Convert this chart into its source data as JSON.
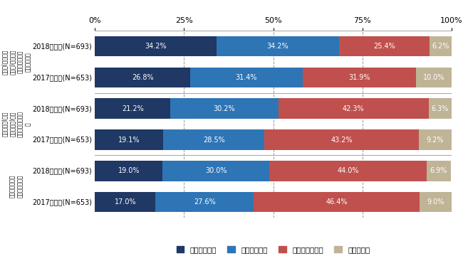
{
  "rows": [
    {
      "label": "2018年調査(N=693)",
      "values": [
        34.2,
        34.2,
        25.4,
        6.2
      ]
    },
    {
      "label": "2017年調査(N=653)",
      "values": [
        26.8,
        31.4,
        31.9,
        10.0
      ]
    },
    {
      "label": "2018年調査(N=693)",
      "values": [
        21.2,
        30.2,
        42.3,
        6.3
      ]
    },
    {
      "label": "2017年調査(N=653)",
      "values": [
        19.1,
        28.5,
        43.2,
        9.2
      ]
    },
    {
      "label": "2018年調査(N=693)",
      "values": [
        19.0,
        30.0,
        44.0,
        6.9
      ]
    },
    {
      "label": "2017年調査(N=653)",
      "values": [
        17.0,
        27.6,
        46.4,
        9.0
      ]
    }
  ],
  "colors": [
    "#1f3864",
    "#2e75b6",
    "#c0504d",
    "#bfb496"
  ],
  "legend_labels": [
    "実施中である",
    "検討中である",
    "実施していない",
    "わからない"
  ],
  "cat_labels": [
    "働き方(ワークス\nタイル)整革が経\n営目標として掲\nげられている",
    "テレワーク(モバ\nイルワーク)の制\n度が整備されてい\nる",
    "在宅勤務制度が\n整備されている"
  ],
  "xticks": [
    0,
    25,
    50,
    75,
    100
  ],
  "xticklabels": [
    "0%",
    "25%",
    "50%",
    "75%",
    "100%"
  ],
  "text_color": "#ffffff",
  "bar_height": 0.65,
  "group_sep_color": "#aaaaaa",
  "grid_color": "#999999",
  "row_label_fontsize": 7.0,
  "bar_fontsize": 7.0,
  "cat_fontsize": 5.5,
  "legend_fontsize": 7.5,
  "axis_fontsize": 8.0
}
